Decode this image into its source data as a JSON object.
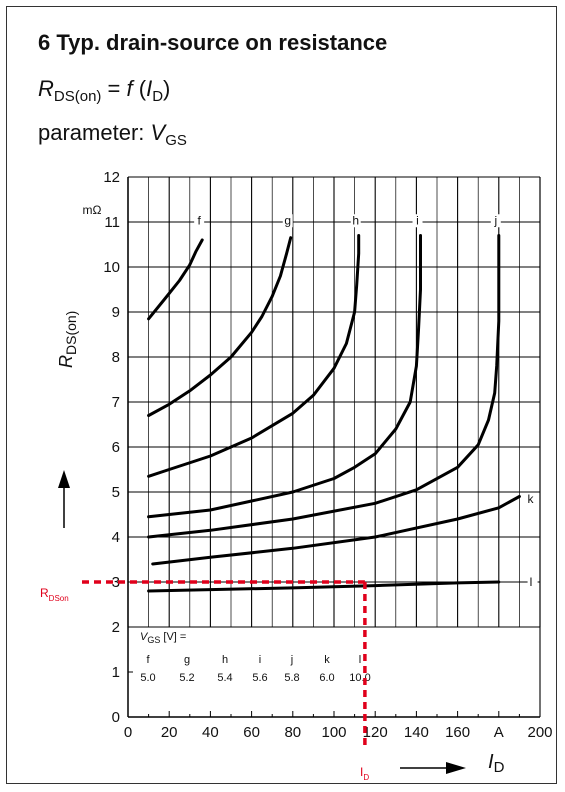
{
  "chart_data": {
    "type": "line",
    "title": "6 Typ. drain-source on resistance",
    "formula": {
      "lhs_sym": "R",
      "lhs_sub": "DS(on)",
      "eq": " = ",
      "rhs_f": "f",
      "rhs_open": " (",
      "rhs_sym": "I",
      "rhs_sub": "D",
      "rhs_close": ")"
    },
    "parameter": {
      "prefix": "parameter: ",
      "sym": "V",
      "sub": "GS"
    },
    "x_ticks": [
      "0",
      "20",
      "40",
      "60",
      "80",
      "100",
      "120",
      "140",
      "160",
      "180",
      "200"
    ],
    "y_ticks": [
      "0",
      "1",
      "2",
      "3",
      "4",
      "5",
      "6",
      "7",
      "8",
      "9",
      "10",
      "11",
      "12"
    ],
    "x_unit": "A",
    "y_unit": "mΩ",
    "ylabel_sym": "R",
    "ylabel_sub": "DS(on)",
    "xlabel_sym": "I",
    "xlabel_sub": "D",
    "xlim": [
      0,
      200
    ],
    "ylim": [
      0,
      12
    ],
    "grid": true,
    "series": [
      {
        "name": "f",
        "x": [
          10,
          18,
          25,
          30,
          33,
          36
        ],
        "y": [
          8.85,
          9.3,
          9.7,
          10.05,
          10.35,
          10.6
        ]
      },
      {
        "name": "g",
        "x": [
          10,
          20,
          30,
          40,
          50,
          60,
          65,
          70,
          74,
          77,
          79
        ],
        "y": [
          6.7,
          6.95,
          7.25,
          7.6,
          8.0,
          8.55,
          8.9,
          9.35,
          9.8,
          10.3,
          10.65
        ]
      },
      {
        "name": "h",
        "x": [
          10,
          20,
          40,
          60,
          80,
          90,
          100,
          106,
          110,
          111,
          112,
          112
        ],
        "y": [
          5.35,
          5.5,
          5.8,
          6.2,
          6.75,
          7.15,
          7.75,
          8.3,
          9.0,
          9.6,
          10.3,
          10.7
        ]
      },
      {
        "name": "i",
        "x": [
          10,
          40,
          60,
          80,
          100,
          110,
          120,
          130,
          137,
          140,
          141,
          142,
          142
        ],
        "y": [
          4.45,
          4.6,
          4.8,
          5.0,
          5.3,
          5.55,
          5.85,
          6.4,
          7.0,
          7.8,
          8.6,
          9.5,
          10.7
        ]
      },
      {
        "name": "j",
        "x": [
          10,
          40,
          80,
          120,
          140,
          160,
          170,
          175,
          178,
          179,
          180,
          180
        ],
        "y": [
          4.0,
          4.15,
          4.4,
          4.75,
          5.05,
          5.55,
          6.05,
          6.6,
          7.2,
          7.8,
          8.8,
          10.7
        ]
      },
      {
        "name": "k",
        "x": [
          12,
          40,
          80,
          120,
          160,
          180,
          190
        ],
        "y": [
          3.4,
          3.55,
          3.75,
          4.0,
          4.4,
          4.65,
          4.9
        ]
      },
      {
        "name": "l",
        "x": [
          10,
          40,
          80,
          120,
          160,
          180
        ],
        "y": [
          2.8,
          2.83,
          2.87,
          2.92,
          2.98,
          3.0
        ]
      }
    ],
    "legend": {
      "header_sym": "V",
      "header_sub": "GS",
      "header_rest": " [V] =",
      "names": [
        "f",
        "g",
        "h",
        "i",
        "j",
        "k",
        "l"
      ],
      "values": [
        "5.0",
        "5.2",
        "5.4",
        "5.6",
        "5.8",
        "6.0",
        "10.0"
      ]
    },
    "annotation": {
      "id": 115,
      "rds": 3.0,
      "label_rds_main": "R",
      "label_rds_sub": "DSon",
      "label_id_main": "I",
      "label_id_sub": "D",
      "color": "#e0001b"
    }
  }
}
